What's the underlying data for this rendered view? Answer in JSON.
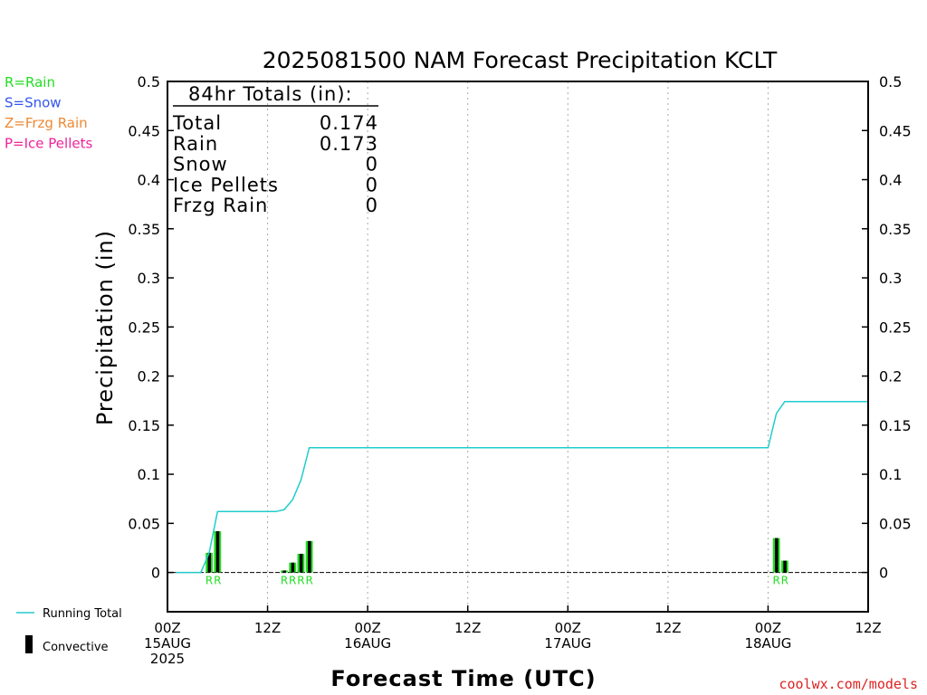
{
  "colors": {
    "rain": "#22dd22",
    "snow": "#3355ee",
    "frzg": "#ee8833",
    "ice": "#ee2299",
    "running_total": "#22cccc",
    "convective": "#000000",
    "credit": "#dd2222"
  },
  "type_legend": [
    {
      "label": "R=Rain",
      "color_key": "rain"
    },
    {
      "label": "S=Snow",
      "color_key": "snow"
    },
    {
      "label": "Z=Frzg Rain",
      "color_key": "frzg"
    },
    {
      "label": "P=Ice Pellets",
      "color_key": "ice"
    }
  ],
  "series_legend": {
    "running_total": "Running Total",
    "convective": "Convective"
  },
  "credit": "coolwx.com/models",
  "totals": {
    "header": "84hr Totals (in):",
    "rows": [
      {
        "label": "Total",
        "value": "0.174"
      },
      {
        "label": "Rain",
        "value": "0.173"
      },
      {
        "label": "Snow",
        "value": "0"
      },
      {
        "label": "Ice Pellets",
        "value": "0"
      },
      {
        "label": "Frzg Rain",
        "value": "0"
      }
    ]
  },
  "chart_data": {
    "type": "bar",
    "title": "2025081500 NAM Forecast Precipitation KCLT",
    "xlabel": "Forecast Time (UTC)",
    "ylabel": "Precipitation (in)",
    "xlim": [
      0,
      84
    ],
    "ylim": [
      -0.04,
      0.5
    ],
    "y_ticks": [
      0,
      0.05,
      0.1,
      0.15,
      0.2,
      0.25,
      0.3,
      0.35,
      0.4,
      0.45,
      0.5
    ],
    "y_tick_labels": [
      "0",
      "0.05",
      "0.1",
      "0.15",
      "0.2",
      "0.25",
      "0.3",
      "0.35",
      "0.4",
      "0.45",
      "0.5"
    ],
    "x_ticks": [
      {
        "hour": 0,
        "lines": [
          "00Z",
          "15AUG",
          "2025"
        ]
      },
      {
        "hour": 12,
        "lines": [
          "12Z"
        ]
      },
      {
        "hour": 24,
        "lines": [
          "00Z",
          "16AUG"
        ]
      },
      {
        "hour": 36,
        "lines": [
          "12Z"
        ]
      },
      {
        "hour": 48,
        "lines": [
          "00Z",
          "17AUG"
        ]
      },
      {
        "hour": 60,
        "lines": [
          "12Z"
        ]
      },
      {
        "hour": 72,
        "lines": [
          "00Z",
          "18AUG"
        ]
      },
      {
        "hour": 84,
        "lines": [
          "12Z"
        ]
      }
    ],
    "grid": "dotted-vertical",
    "bars": [
      {
        "hour": 5,
        "total": 0.02,
        "convective": 0.02,
        "ptype": "R"
      },
      {
        "hour": 6,
        "total": 0.042,
        "convective": 0.042,
        "ptype": "R"
      },
      {
        "hour": 14,
        "total": 0.002,
        "convective": 0.002,
        "ptype": "R"
      },
      {
        "hour": 15,
        "total": 0.01,
        "convective": 0.01,
        "ptype": "R"
      },
      {
        "hour": 16,
        "total": 0.019,
        "convective": 0.019,
        "ptype": "R"
      },
      {
        "hour": 17,
        "total": 0.032,
        "convective": 0.032,
        "ptype": "R"
      },
      {
        "hour": 73,
        "total": 0.035,
        "convective": 0.035,
        "ptype": "R"
      },
      {
        "hour": 74,
        "total": 0.012,
        "convective": 0.012,
        "ptype": "R"
      }
    ],
    "running_total": {
      "name": "Running Total",
      "x": [
        1,
        4,
        5,
        6,
        13,
        14,
        15,
        16,
        17,
        72,
        73,
        74,
        84
      ],
      "y": [
        0,
        0,
        0.02,
        0.062,
        0.062,
        0.064,
        0.074,
        0.094,
        0.127,
        0.127,
        0.162,
        0.174,
        0.174
      ]
    }
  }
}
